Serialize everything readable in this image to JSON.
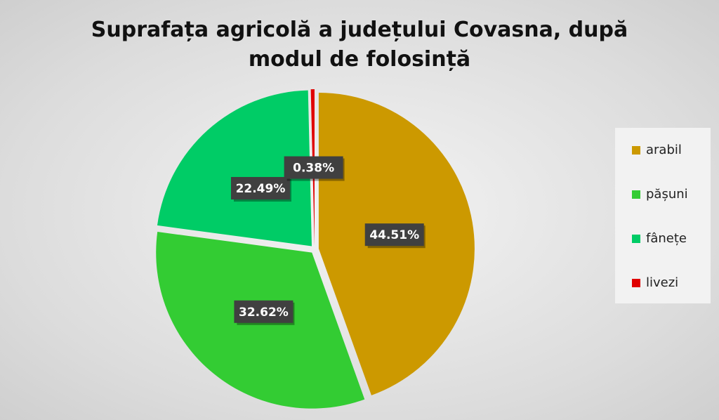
{
  "chart_data": {
    "type": "pie",
    "title": "Suprafața agricolă a județului Covasna, după modul de folosință",
    "categories": [
      "arabil",
      "pășuni",
      "fânețe",
      "livezi"
    ],
    "values": [
      44.51,
      32.62,
      22.49,
      0.38
    ],
    "value_labels": [
      "44.51%",
      "32.62%",
      "22.49%",
      "0.38%"
    ],
    "colors": [
      "#cc9900",
      "#33cc33",
      "#00cc66",
      "#e00000"
    ],
    "legend": "right"
  }
}
